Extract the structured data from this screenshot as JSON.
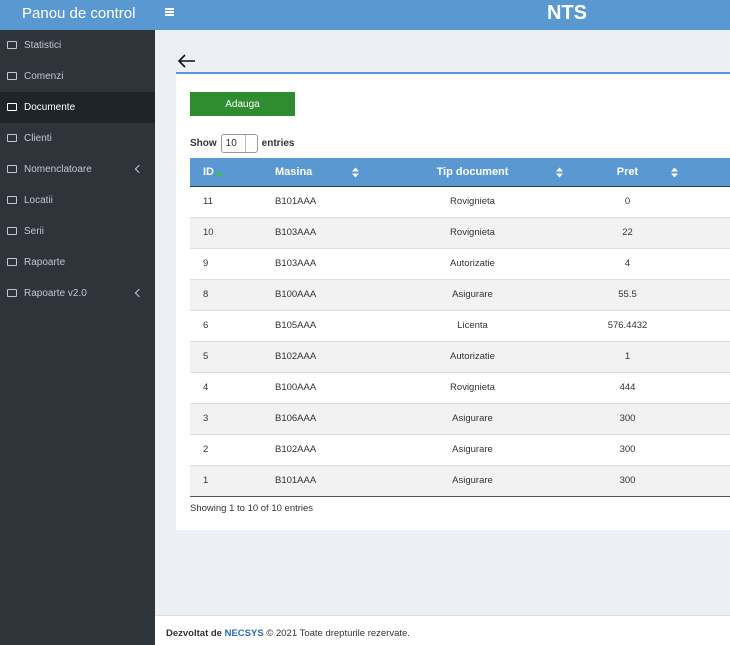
{
  "header": {
    "brand": "Panou de control",
    "title": "NTS"
  },
  "sidebar": [
    "Statistici",
    "Comenzi",
    "Documente",
    "Clienti",
    "Nomenclatoare",
    "Locatii",
    "Serii",
    "Rapoarte",
    "Rapoarte v2.0"
  ],
  "content": {
    "button": "Adauga",
    "show": "Show",
    "length": "10",
    "entries": "entries",
    "table": {
      "columns": [
        "ID",
        "Masina",
        "Tip document",
        "Pret"
      ],
      "rows": [
        [
          "11",
          "B101AAA",
          "Rovignieta",
          "0"
        ],
        [
          "10",
          "B103AAA",
          "Rovignieta",
          "22"
        ],
        [
          "9",
          "B103AAA",
          "Autorizatie",
          "4"
        ],
        [
          "8",
          "B100AAA",
          "Asigurare",
          "55.5"
        ],
        [
          "6",
          "B105AAA",
          "Licenta",
          "576.4432"
        ],
        [
          "5",
          "B102AAA",
          "Autorizatie",
          "1"
        ],
        [
          "4",
          "B100AAA",
          "Rovignieta",
          "444"
        ],
        [
          "3",
          "B106AAA",
          "Asigurare",
          "300"
        ],
        [
          "2",
          "B102AAA",
          "Asigurare",
          "300"
        ],
        [
          "1",
          "B101AAA",
          "Asigurare",
          "300"
        ]
      ]
    },
    "info": "Showing 1 to 10 of 10 entries"
  },
  "footer": {
    "prefix": "Dezvoltat de",
    "company": "NECSYS",
    "rest": "© 2021 Toate drepturile rezervate."
  }
}
